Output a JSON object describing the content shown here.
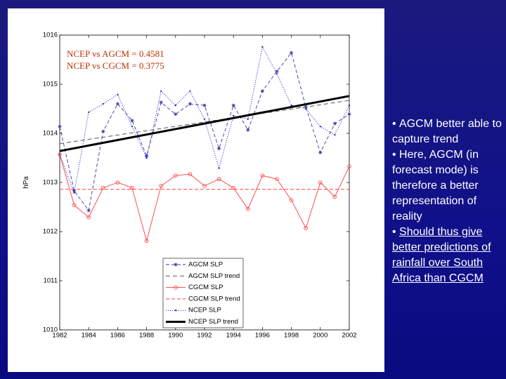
{
  "chart_data": {
    "type": "line",
    "ylabel": "hPa",
    "annotations": [
      "NCEP vs AGCM = 0.4581",
      "NCEP vs CGCM = 0.3775"
    ],
    "xlim": [
      1982,
      2002
    ],
    "xticks": [
      1982,
      1984,
      1986,
      1988,
      1990,
      1992,
      1994,
      1996,
      1998,
      2000,
      2002
    ],
    "ylim": [
      1010,
      1016
    ],
    "yticks": [
      1010,
      1011,
      1012,
      1013,
      1014,
      1015,
      1016
    ],
    "series": [
      {
        "name": "AGCM SLP",
        "color": "#3a3aa0",
        "dash": "5,3",
        "marker": "star",
        "width": 0.9,
        "x": [
          1982,
          1983,
          1984,
          1985,
          1986,
          1987,
          1988,
          1989,
          1990,
          1991,
          1992,
          1993,
          1994,
          1995,
          1996,
          1997,
          1998,
          1999,
          2000,
          2001,
          2002
        ],
        "values": [
          1014.14,
          1012.83,
          1012.43,
          1014.04,
          1014.6,
          1014.26,
          1013.54,
          1014.63,
          1014.39,
          1014.6,
          1014.57,
          1013.69,
          1014.57,
          1014.07,
          1014.86,
          1015.26,
          1015.64,
          1014.54,
          1013.61,
          1014.2,
          1014.39
        ]
      },
      {
        "name": "AGCM SLP trend",
        "color": "#555555",
        "dash": "6,4",
        "marker": "none",
        "width": 1,
        "x": [
          1982,
          2002
        ],
        "values": [
          1013.79,
          1014.67
        ]
      },
      {
        "name": "CGCM SLP",
        "color": "#ff3b3b",
        "dash": "none",
        "marker": "circle",
        "width": 0.9,
        "x": [
          1982,
          1983,
          1984,
          1985,
          1986,
          1987,
          1988,
          1989,
          1990,
          1991,
          1992,
          1993,
          1994,
          1995,
          1996,
          1997,
          1998,
          1999,
          2000,
          2001,
          2002
        ],
        "values": [
          1013.57,
          1012.54,
          1012.29,
          1012.89,
          1013.0,
          1012.89,
          1011.81,
          1012.93,
          1013.14,
          1013.17,
          1012.93,
          1013.07,
          1012.89,
          1012.46,
          1013.14,
          1013.07,
          1012.64,
          1012.07,
          1013.0,
          1012.71,
          1013.33
        ]
      },
      {
        "name": "CGCM SLP trend",
        "color": "#ff3b3b",
        "dash": "5,3",
        "marker": "none",
        "width": 1,
        "x": [
          1982,
          2002
        ],
        "values": [
          1012.86,
          1012.86
        ]
      },
      {
        "name": "NCEP SLP",
        "color": "#1010d0",
        "dash": "1,2",
        "marker": "dot",
        "width": 1,
        "x": [
          1982,
          1983,
          1984,
          1985,
          1986,
          1987,
          1988,
          1989,
          1990,
          1991,
          1992,
          1993,
          1994,
          1995,
          1996,
          1997,
          1998,
          1999,
          2000,
          2001,
          2002
        ],
        "values": [
          1013.57,
          1012.79,
          1014.43,
          1014.6,
          1014.79,
          1014.14,
          1013.5,
          1014.86,
          1014.57,
          1014.86,
          1014.29,
          1013.29,
          1014.36,
          1014.29,
          1015.76,
          1015.21,
          1014.57,
          1014.5,
          1014.14,
          1013.97,
          1014.57
        ]
      },
      {
        "name": "NCEP SLP trend",
        "color": "#000000",
        "dash": "none",
        "marker": "none",
        "width": 3,
        "x": [
          1982,
          2002
        ],
        "values": [
          1013.64,
          1014.76
        ]
      }
    ]
  },
  "slide": {
    "bullets": [
      {
        "text": "AGCM better able to capture trend",
        "underline": false
      },
      {
        "text": "Here, AGCM (in forecast mode) is therefore a better representation of reality",
        "underline": false
      },
      {
        "text": "Should thus give better predictions of rainfall over South Africa than CGCM",
        "underline": true
      }
    ]
  }
}
